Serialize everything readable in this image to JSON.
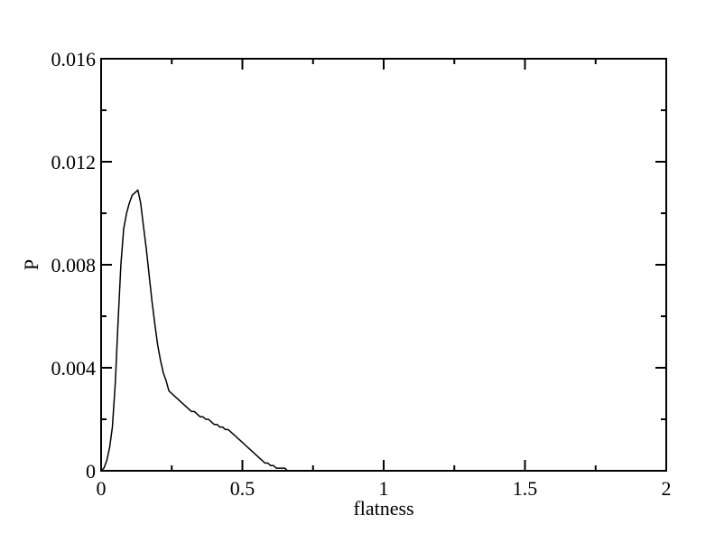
{
  "chart_data": {
    "type": "line",
    "title": "",
    "xlabel": "flatness",
    "ylabel": "P",
    "xlim": [
      0,
      2
    ],
    "ylim": [
      0,
      0.016
    ],
    "grid": false,
    "line_color": "#000000",
    "x_ticks": {
      "major": [
        0,
        0.5,
        1,
        1.5,
        2
      ],
      "major_labels": [
        "0",
        "0.5",
        "1",
        "1.5",
        "2"
      ],
      "minor": [
        0.25,
        0.75,
        1.25,
        1.75
      ]
    },
    "y_ticks": {
      "major": [
        0,
        0.004,
        0.008,
        0.012,
        0.016
      ],
      "major_labels": [
        "0",
        "0.004",
        "0.008",
        "0.012",
        "0.016"
      ],
      "minor": [
        0.002,
        0.006,
        0.01,
        0.014
      ]
    },
    "series": [
      {
        "x": [
          0.0,
          0.01,
          0.02,
          0.03,
          0.04,
          0.05,
          0.06,
          0.07,
          0.08,
          0.09,
          0.1,
          0.11,
          0.12,
          0.13,
          0.14,
          0.15,
          0.16,
          0.17,
          0.18,
          0.19,
          0.2,
          0.21,
          0.22,
          0.23,
          0.24,
          0.25,
          0.26,
          0.27,
          0.28,
          0.29,
          0.3,
          0.31,
          0.32,
          0.33,
          0.34,
          0.35,
          0.36,
          0.37,
          0.38,
          0.39,
          0.4,
          0.41,
          0.42,
          0.43,
          0.44,
          0.45,
          0.46,
          0.47,
          0.48,
          0.49,
          0.5,
          0.51,
          0.52,
          0.53,
          0.54,
          0.55,
          0.56,
          0.57,
          0.58,
          0.59,
          0.6,
          0.61,
          0.62,
          0.63,
          0.64,
          0.65,
          0.66,
          0.67,
          0.68,
          0.69,
          0.7,
          0.72
        ],
        "values": [
          0.0,
          0.0001,
          0.0004,
          0.0009,
          0.0017,
          0.0034,
          0.0058,
          0.008,
          0.0094,
          0.01,
          0.0104,
          0.0107,
          0.0108,
          0.0109,
          0.0104,
          0.0095,
          0.0086,
          0.0076,
          0.0066,
          0.0057,
          0.0049,
          0.0043,
          0.0038,
          0.0035,
          0.0031,
          0.003,
          0.0029,
          0.0028,
          0.0027,
          0.0026,
          0.0025,
          0.0024,
          0.0023,
          0.0023,
          0.0022,
          0.0021,
          0.0021,
          0.002,
          0.002,
          0.0019,
          0.0018,
          0.0018,
          0.0017,
          0.0017,
          0.0016,
          0.0016,
          0.0015,
          0.0014,
          0.0013,
          0.0012,
          0.0011,
          0.001,
          0.0009,
          0.0008,
          0.0007,
          0.0006,
          0.0005,
          0.0004,
          0.0003,
          0.0003,
          0.0002,
          0.0002,
          0.0001,
          0.0001,
          0.0001,
          0.0001,
          0.0,
          0.0,
          0.0,
          0.0,
          0.0,
          0.0
        ]
      }
    ]
  }
}
